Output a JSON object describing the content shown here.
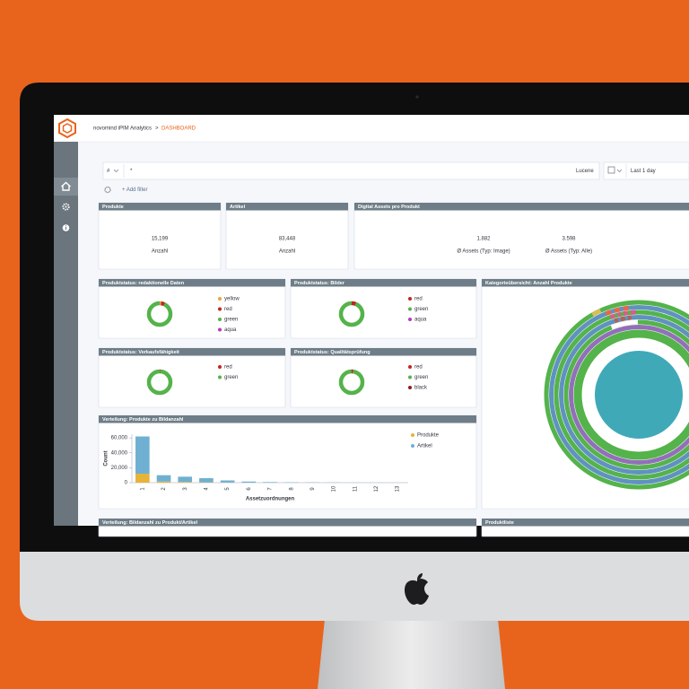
{
  "header": {
    "app": "novomind iPIM Analytics",
    "separator": ">",
    "page": "DASHBOARD"
  },
  "query_bar": {
    "language": "#",
    "query": "*",
    "syntax": "Lucene",
    "time": "Last 1 day",
    "add_filter": "+ Add filter"
  },
  "metrics": [
    {
      "title": "Produkte",
      "value": "15,199",
      "label": "Anzahl"
    },
    {
      "title": "Artikel",
      "value": "83,448",
      "label": "Anzahl"
    }
  ],
  "assets": {
    "title": "Digital Assets pro Produkt",
    "items": [
      {
        "value": "1.882",
        "label": "Ø Assets (Typ: Image)"
      },
      {
        "value": "3.598",
        "label": "Ø Assets (Typ: Alle)"
      }
    ]
  },
  "donuts": [
    {
      "title": "Produktstatus: redaktionelle Daten",
      "series": [
        {
          "name": "yellow",
          "color": "#e7a63b",
          "value": 2
        },
        {
          "name": "red",
          "color": "#bd271e",
          "value": 5
        },
        {
          "name": "green",
          "color": "#54b34a",
          "value": 93
        },
        {
          "name": "aqua",
          "color": "#b43bb8",
          "value": 0
        }
      ]
    },
    {
      "title": "Produktstatus: Bilder",
      "series": [
        {
          "name": "red",
          "color": "#bd271e",
          "value": 6
        },
        {
          "name": "green",
          "color": "#54b34a",
          "value": 94
        },
        {
          "name": "aqua",
          "color": "#b43bb8",
          "value": 0
        }
      ]
    },
    {
      "title": "Produktstatus: Verkaufsfähigkeit",
      "series": [
        {
          "name": "red",
          "color": "#bd271e",
          "value": 1
        },
        {
          "name": "green",
          "color": "#54b34a",
          "value": 99
        }
      ]
    },
    {
      "title": "Produktstatus: Qualitätsprüfung",
      "series": [
        {
          "name": "red",
          "color": "#bd271e",
          "value": 2
        },
        {
          "name": "green",
          "color": "#54b34a",
          "value": 97
        },
        {
          "name": "black",
          "color": "#8c1d1d",
          "value": 1
        }
      ]
    }
  ],
  "sunburst": {
    "title": "Kategorieübersicht: Anzahl Produkte"
  },
  "bar_chart": {
    "type": "bar",
    "stacked": true,
    "title": "Verteilung: Produkte zu Bildanzahl",
    "x_label": "Assetzuordnungen",
    "y_label": "Count",
    "categories": [
      "1",
      "2",
      "3",
      "4",
      "5",
      "6",
      "7",
      "8",
      "9",
      "10",
      "11",
      "12",
      "13"
    ],
    "series": [
      {
        "name": "Produkte",
        "color": "#e7b339",
        "values": [
          12000,
          1500,
          1000,
          500,
          300,
          100,
          50,
          0,
          0,
          0,
          0,
          0,
          0
        ]
      },
      {
        "name": "Artikel",
        "color": "#6fb0d2",
        "values": [
          50000,
          8500,
          7000,
          5500,
          2700,
          1400,
          750,
          400,
          300,
          200,
          100,
          100,
          50
        ]
      }
    ],
    "ylim": [
      0,
      65000
    ],
    "yticks": [
      0,
      {
        "value": 20000,
        "label": "20,000"
      },
      {
        "value": 40000,
        "label": "40,000"
      },
      {
        "value": 60000,
        "label": "60,000"
      }
    ]
  },
  "lower_panels": [
    "Verteilung: Bildanzahl zu Produkt/Artikel",
    "Produktliste"
  ]
}
